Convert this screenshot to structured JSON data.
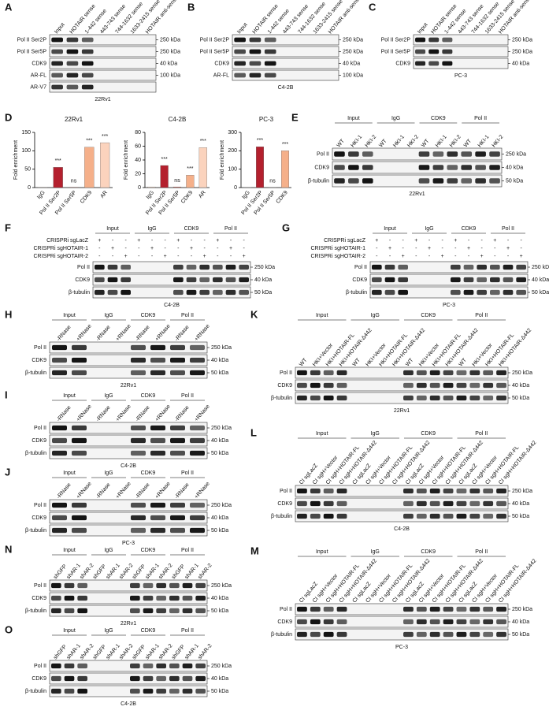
{
  "panel_d_label": "D",
  "chart_data": [
    {
      "type": "bar",
      "title": "22Rv1",
      "ylabel": "Fold enrichment",
      "categories": [
        "IgG",
        "Pol II Ser2P",
        "Pol II Ser5P",
        "CDK9",
        "AR"
      ],
      "values": [
        1,
        55,
        1,
        110,
        122
      ],
      "significance": [
        null,
        "***",
        "ns",
        "***",
        "***"
      ],
      "colors": [
        "#f6d8c8",
        "#b4202e",
        "#d9655a",
        "#f5b08a",
        "#fbd3bd"
      ],
      "ylim": [
        0,
        150
      ],
      "yticks": [
        0,
        50,
        100,
        150
      ]
    },
    {
      "type": "bar",
      "title": "C4-2B",
      "ylabel": "Fold enrichment",
      "categories": [
        "IgG",
        "Pol II Ser2P",
        "Pol II Ser5P",
        "CDK9",
        "AR"
      ],
      "values": [
        1,
        32,
        1,
        18,
        58
      ],
      "significance": [
        null,
        "***",
        "ns",
        "***",
        "***"
      ],
      "colors": [
        "#f6d8c8",
        "#b4202e",
        "#d9655a",
        "#f5b08a",
        "#fbd3bd"
      ],
      "ylim": [
        0,
        80
      ],
      "yticks": [
        0,
        20,
        40,
        60,
        80
      ]
    },
    {
      "type": "bar",
      "title": "PC-3",
      "ylabel": "Fold enrichment",
      "categories": [
        "IgG",
        "Pol II Ser2P",
        "Pol II Ser5P",
        "CDK9"
      ],
      "values": [
        1,
        222,
        1,
        200
      ],
      "significance": [
        null,
        "***",
        "ns",
        "***"
      ],
      "colors": [
        "#f6d8c8",
        "#b4202e",
        "#d9655a",
        "#f5b08a"
      ],
      "ylim": [
        0,
        300
      ],
      "yticks": [
        0,
        100,
        200,
        300
      ]
    }
  ],
  "panels": [
    {
      "letter": "A",
      "lanes": [
        "Input",
        "HOTAIR sense",
        "1-442 sense",
        "443-743 sense",
        "744-1632 sense",
        "1633-2415 sense",
        "HOTAIR anti-sense"
      ],
      "rows": [
        {
          "label": "Pol II Ser2P",
          "size": "250 kDa"
        },
        {
          "label": "Pol II Ser5P",
          "size": "250 kDa"
        },
        {
          "label": "CDK9",
          "size": "40 kDa"
        },
        {
          "label": "AR-FL",
          "size": "100 kDa"
        },
        {
          "label": "AR-V7",
          "size": null
        }
      ],
      "caption": "22Rv1"
    },
    {
      "letter": "B",
      "lanes": [
        "Input",
        "HOTAIR sense",
        "1-442 sense",
        "443-743 sense",
        "744-1632 sense",
        "1633-2415 sense",
        "HOTAIR anti-sense"
      ],
      "rows": [
        {
          "label": "Pol II Ser2P",
          "size": "250 kDa"
        },
        {
          "label": "Pol II Ser5P",
          "size": "250 kDa"
        },
        {
          "label": "CDK9",
          "size": "40 kDa"
        },
        {
          "label": "AR-FL",
          "size": "100 kDa"
        }
      ],
      "caption": "C4-2B"
    },
    {
      "letter": "C",
      "lanes": [
        "Input",
        "HOTAIR sense",
        "1-442 sense",
        "443-743 sense",
        "744-1632 sense",
        "1633-2415 sense",
        "HOTAIR anti-sense"
      ],
      "rows": [
        {
          "label": "Pol II Ser2P",
          "size": "250 kDa"
        },
        {
          "label": "Pol II Ser5P",
          "size": "250 kDa"
        },
        {
          "label": "CDK9",
          "size": "40 kDa"
        }
      ],
      "caption": "PC-3"
    },
    {
      "letter": "E",
      "groups": [
        "Input",
        "IgG",
        "CDK9",
        "Pol II"
      ],
      "lanes": [
        "WT",
        "HKI-1",
        "HKI-2"
      ],
      "rows": [
        {
          "label": "Pol II",
          "size": "250 kDa"
        },
        {
          "label": "CDK9",
          "size": "40 kDa"
        },
        {
          "label": "β-tubulin",
          "size": "50 kDa"
        }
      ],
      "caption": "22Rv1"
    },
    {
      "letter": "F",
      "groups": [
        "Input",
        "IgG",
        "CDK9",
        "Pol II"
      ],
      "conditions": [
        {
          "label": "CRISPRi sgLacZ",
          "signs": [
            "+",
            "-",
            "-",
            "+",
            "-",
            "-",
            "+",
            "-",
            "-",
            "+",
            "-",
            "-"
          ]
        },
        {
          "label": "CRISPRi sgHOTAIR-1",
          "signs": [
            "-",
            "+",
            "-",
            "-",
            "+",
            "-",
            "-",
            "+",
            "-",
            "-",
            "+",
            "-"
          ]
        },
        {
          "label": "CRISPRi sgHOTAIR-2",
          "signs": [
            "-",
            "-",
            "+",
            "-",
            "-",
            "+",
            "-",
            "-",
            "+",
            "-",
            "-",
            "+"
          ]
        }
      ],
      "rows": [
        {
          "label": "Pol II",
          "size": "250 kDa"
        },
        {
          "label": "CDK9",
          "size": "40 kDa"
        },
        {
          "label": "β-tubulin",
          "size": "50 kDa"
        }
      ],
      "caption": "C4-2B"
    },
    {
      "letter": "G",
      "groups": [
        "Input",
        "IgG",
        "CDK9",
        "Pol II"
      ],
      "conditions": [
        {
          "label": "CRISPRi sgLacZ",
          "signs": [
            "+",
            "-",
            "-",
            "+",
            "-",
            "-",
            "+",
            "-",
            "-",
            "+",
            "-",
            "-"
          ]
        },
        {
          "label": "CRISPRi sgHOTAIR-1",
          "signs": [
            "-",
            "+",
            "-",
            "-",
            "+",
            "-",
            "-",
            "+",
            "-",
            "-",
            "+",
            "-"
          ]
        },
        {
          "label": "CRISPRi sgHOTAIR-2",
          "signs": [
            "-",
            "-",
            "+",
            "-",
            "-",
            "+",
            "-",
            "-",
            "+",
            "-",
            "-",
            "+"
          ]
        }
      ],
      "rows": [
        {
          "label": "Pol II",
          "size": "250 kDa"
        },
        {
          "label": "CDK9",
          "size": "40 kDa"
        },
        {
          "label": "β-tubulin",
          "size": "50 kDa"
        }
      ],
      "caption": "PC-3"
    },
    {
      "letter": "H",
      "groups": [
        "Input",
        "IgG",
        "CDK9",
        "Pol II"
      ],
      "lanes": [
        "-RNase",
        "+RNase"
      ],
      "rows": [
        {
          "label": "Pol II",
          "size": "250 kDa"
        },
        {
          "label": "CDK9",
          "size": "40 kDa"
        },
        {
          "label": "β-tubulin",
          "size": "50 kDa"
        }
      ],
      "caption": "22Rv1"
    },
    {
      "letter": "K",
      "groups": [
        "Input",
        "IgG",
        "CDK9",
        "Pol II"
      ],
      "lanes": [
        "WT",
        "HKI+Vector",
        "HKI+HOTAIR-FL",
        "HKI+HOTAIR-Δ442"
      ],
      "rows": [
        {
          "label": "Pol II",
          "size": "250 kDa"
        },
        {
          "label": "CDK9",
          "size": "40 kDa"
        },
        {
          "label": "β-tubulin",
          "size": "50 kDa"
        }
      ],
      "caption": "22Rv1"
    },
    {
      "letter": "I",
      "groups": [
        "Input",
        "IgG",
        "CDK9",
        "Pol II"
      ],
      "lanes": [
        "-RNase",
        "+RNase"
      ],
      "rows": [
        {
          "label": "Pol II",
          "size": "250 kDa"
        },
        {
          "label": "CDK9",
          "size": "40 kDa"
        },
        {
          "label": "β-tubulin",
          "size": "50 kDa"
        }
      ],
      "caption": "C4-2B"
    },
    {
      "letter": "L",
      "groups": [
        "Input",
        "IgG",
        "CDK9",
        "Pol II"
      ],
      "lanes": [
        "CI sgLacZ",
        "CI sgH+Vector",
        "CI sgH+HOTAIR-FL",
        "CI sgH+HOTAIR-Δ442"
      ],
      "rows": [
        {
          "label": "Pol II",
          "size": "250 kDa"
        },
        {
          "label": "CDK9",
          "size": "40 kDa"
        },
        {
          "label": "β-tubulin",
          "size": "50 kDa"
        }
      ],
      "caption": "C4-2B"
    },
    {
      "letter": "J",
      "groups": [
        "Input",
        "IgG",
        "CDK9",
        "Pol II"
      ],
      "lanes": [
        "-RNase",
        "+RNase"
      ],
      "rows": [
        {
          "label": "Pol II",
          "size": "250 kDa"
        },
        {
          "label": "CDK9",
          "size": "40 kDa"
        },
        {
          "label": "β-tubulin",
          "size": "50 kDa"
        }
      ],
      "caption": "PC-3"
    },
    {
      "letter": "M",
      "groups": [
        "Input",
        "IgG",
        "CDK9",
        "Pol II"
      ],
      "lanes": [
        "CI sgLacZ",
        "CI sgH+Vector",
        "CI sgH+HOTAIR-FL",
        "CI sgH+HOTAIR-Δ442"
      ],
      "rows": [
        {
          "label": "Pol II",
          "size": "250 kDa"
        },
        {
          "label": "CDK9",
          "size": "40 kDa"
        },
        {
          "label": "β-tubulin",
          "size": "50 kDa"
        }
      ],
      "caption": "PC-3"
    },
    {
      "letter": "N",
      "groups": [
        "Input",
        "IgG",
        "CDK9",
        "Pol II"
      ],
      "lanes": [
        "shGFP",
        "shAR-1",
        "shAR-2"
      ],
      "rows": [
        {
          "label": "Pol II",
          "size": "250 kDa"
        },
        {
          "label": "CDK9",
          "size": "40 kDa"
        },
        {
          "label": "β-tubulin",
          "size": "50 kDa"
        }
      ],
      "caption": "22Rv1"
    },
    {
      "letter": "O",
      "groups": [
        "Input",
        "IgG",
        "CDK9",
        "Pol II"
      ],
      "lanes": [
        "shGFP",
        "shAR-1",
        "shAR-2"
      ],
      "rows": [
        {
          "label": "Pol II",
          "size": "250 kDa"
        },
        {
          "label": "CDK9",
          "size": "40 kDa"
        },
        {
          "label": "β-tubulin",
          "size": "50 kDa"
        }
      ],
      "caption": "C4-2B"
    }
  ]
}
